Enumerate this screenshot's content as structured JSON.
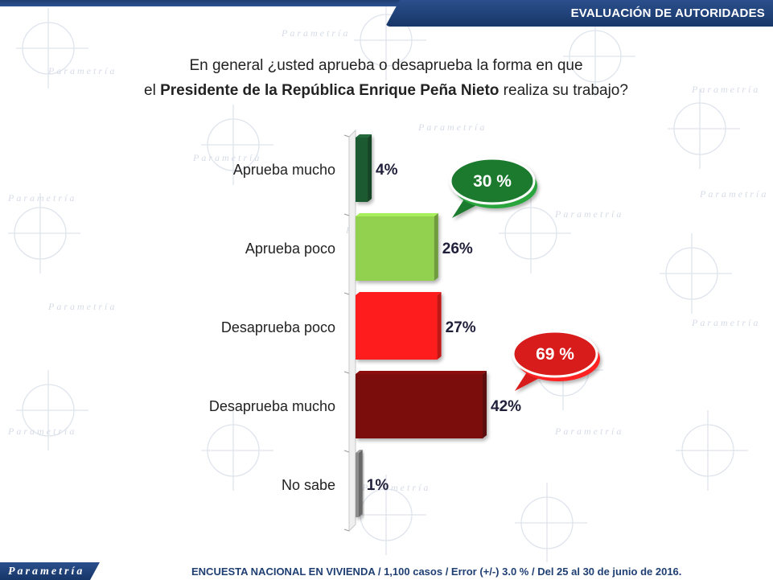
{
  "header": {
    "section_title": "EVALUACIÓN DE AUTORIDADES"
  },
  "question": {
    "line1": "En general ¿usted aprueba o desaprueba la forma en que",
    "line2_prefix": "el ",
    "line2_bold": "Presidente de la República Enrique Peña Nieto",
    "line2_suffix": " realiza su trabajo?"
  },
  "watermark_text": "Parametría",
  "footer": {
    "logo_text": "Parametría",
    "note": "ENCUESTA NACIONAL EN VIVIENDA / 1,100 casos / Error (+/-) 3.0 % / Del 25 al 30 de junio de 2016."
  },
  "colors": {
    "header_blue": "#1f3f73",
    "aprueba_mucho": "#1d5a33",
    "aprueba_poco": "#92d050",
    "desaprueba_poco": "#ff1a1a",
    "desaprueba_mucho": "#7b0a0a",
    "no_sabe": "#8c8c8c",
    "bubble_green": "#1e7a2e",
    "bubble_red": "#d81b1b"
  },
  "chart_data": {
    "type": "bar",
    "orientation": "horizontal",
    "categories": [
      "Aprueba mucho",
      "Aprueba poco",
      "Desaprueba poco",
      "Desaprueba mucho",
      "No sabe"
    ],
    "values": [
      4,
      26,
      27,
      42,
      1
    ],
    "value_labels": [
      "4%",
      "26%",
      "27%",
      "42%",
      "1%"
    ],
    "bar_colors": [
      "#1d5a33",
      "#92d050",
      "#ff1a1a",
      "#7b0a0a",
      "#8c8c8c"
    ],
    "xlim": [
      0,
      42
    ],
    "grid": false,
    "legend": "none",
    "annotations": [
      {
        "text": "30 %",
        "color": "#1e7a2e",
        "groups": [
          "Aprueba mucho",
          "Aprueba poco"
        ]
      },
      {
        "text": "69 %",
        "color": "#d81b1b",
        "groups": [
          "Desaprueba poco",
          "Desaprueba mucho"
        ]
      }
    ]
  }
}
